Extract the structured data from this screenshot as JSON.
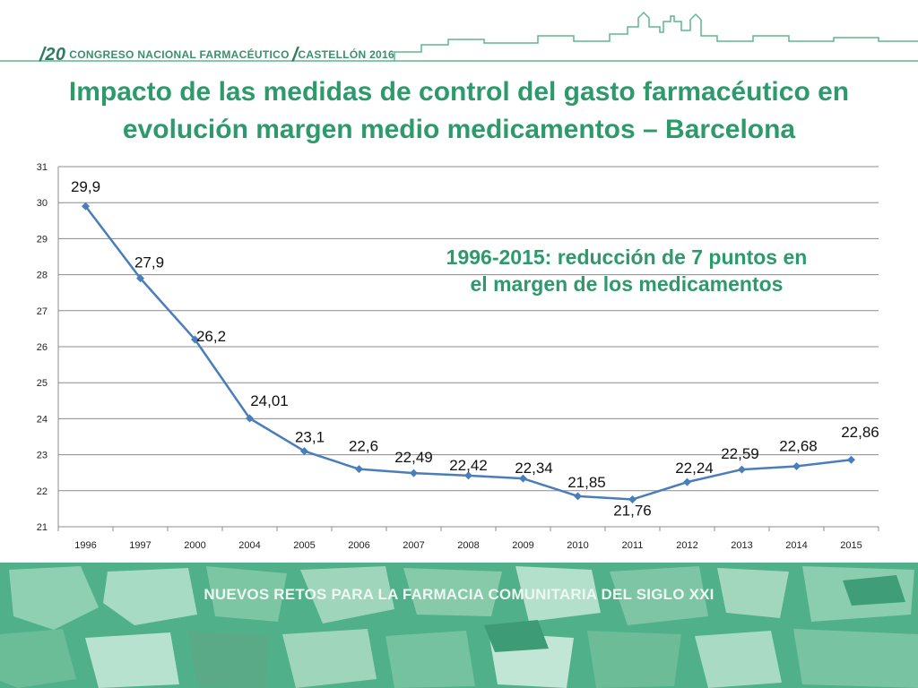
{
  "header": {
    "congress_number": "20",
    "congress_label": "CONGRESO NACIONAL FARMACÉUTICO",
    "city_label": "CASTELLÓN 2016"
  },
  "title": {
    "line1": "Impacto de  las medidas de control del gasto farmacéutico en",
    "line2": "evolución margen medio medicamentos – Barcelona"
  },
  "annotation": {
    "line1": "1996-2015: reducción de 7 puntos en",
    "line2": "el margen de los medicamentos"
  },
  "footer": {
    "text": "NUEVOS RETOS PARA LA FARMACIA COMUNITARIA DEL SIGLO XXI"
  },
  "colors": {
    "accent": "#2e9a6c",
    "line": "#4a7ebb",
    "grid": "#8c8c8c",
    "min_label": "#c00000",
    "footer_bg": "#4fb08a"
  },
  "chart_data": {
    "type": "line",
    "title": "",
    "xlabel": "",
    "ylabel": "",
    "ylim": [
      21,
      31
    ],
    "yticks": [
      "21",
      "22",
      "23",
      "24",
      "25",
      "26",
      "27",
      "28",
      "29",
      "30",
      "31"
    ],
    "grid": true,
    "categories": [
      "1996",
      "1997",
      "2000",
      "2004",
      "2005",
      "2006",
      "2007",
      "2008",
      "2009",
      "2010",
      "2011",
      "2012",
      "2013",
      "2014",
      "2015"
    ],
    "values": [
      29.9,
      27.9,
      26.2,
      24.01,
      23.1,
      22.6,
      22.49,
      22.42,
      22.34,
      21.85,
      21.76,
      22.24,
      22.59,
      22.68,
      22.86
    ],
    "labels": [
      "29,9",
      "27,9",
      "26,2",
      "24,01",
      "23,1",
      "22,6",
      "22,49",
      "22,42",
      "22,34",
      "21,85",
      "21,76",
      "22,24",
      "22,59",
      "22,68",
      "22,86"
    ],
    "highlight_index": 10
  }
}
